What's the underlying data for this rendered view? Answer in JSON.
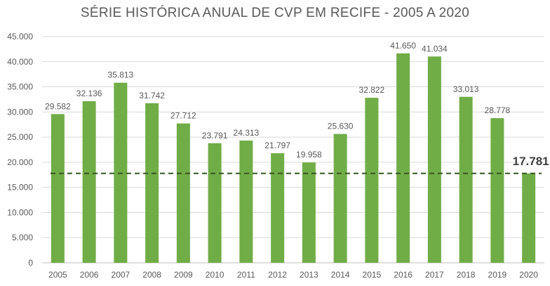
{
  "chart_data": {
    "type": "bar",
    "title": "SÉRIE HISTÓRICA ANUAL DE CVP EM RECIFE - 2005 A 2020",
    "xlabel": "",
    "ylabel": "",
    "categories": [
      "2005",
      "2006",
      "2007",
      "2008",
      "2009",
      "2010",
      "2011",
      "2012",
      "2013",
      "2014",
      "2015",
      "2016",
      "2017",
      "2018",
      "2019",
      "2020"
    ],
    "values": [
      29582,
      32136,
      35813,
      31742,
      27712,
      23791,
      24313,
      21797,
      19958,
      25630,
      32822,
      41650,
      41034,
      33013,
      28778,
      17781
    ],
    "value_labels": [
      "29.582",
      "32.136",
      "35.813",
      "31.742",
      "27.712",
      "23.791",
      "24.313",
      "21.797",
      "19.958",
      "25.630",
      "32.822",
      "41.650",
      "41.034",
      "33.013",
      "28.778",
      "17.781"
    ],
    "ylim": [
      0,
      45000
    ],
    "y_ticks": [
      0,
      5000,
      10000,
      15000,
      20000,
      25000,
      30000,
      35000,
      40000,
      45000
    ],
    "y_tick_labels": [
      "0",
      "5.000",
      "10.000",
      "15.000",
      "20.000",
      "25.000",
      "30.000",
      "35.000",
      "40.000",
      "45.000"
    ],
    "reference_line": {
      "value": 17781,
      "style": "dashed"
    },
    "grid": true,
    "legend": "none",
    "colors": {
      "bar": "#70ad47",
      "grid": "#d9d9d9",
      "text": "#595959",
      "reference_line": "#375623",
      "highlight_label": "#404040"
    }
  }
}
